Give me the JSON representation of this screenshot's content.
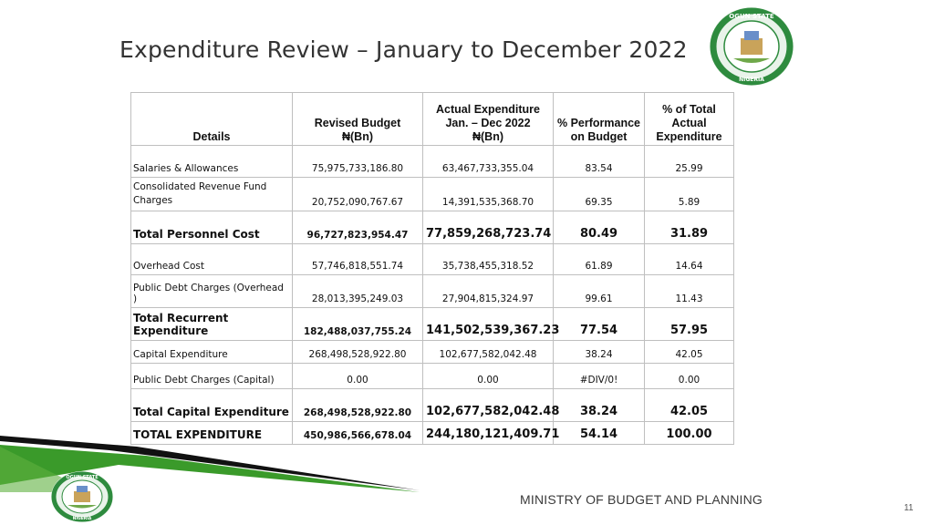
{
  "title": "Expenditure Review – January to December 2022",
  "table": {
    "headers": [
      [
        "Details"
      ],
      [
        "Revised  Budget",
        "₦(Bn)"
      ],
      [
        "Actual Expenditure",
        "Jan. – Dec 2022",
        "₦(Bn)"
      ],
      [
        "% Performance",
        "on     Budget"
      ],
      [
        "% of Total",
        "Actual",
        "Expenditure"
      ]
    ],
    "rows": [
      {
        "label": "Salaries & Allowances",
        "budget": "75,975,733,186.80",
        "actual": "63,467,733,355.04",
        "perf": "83.54",
        "share": "25.99"
      },
      {
        "label": "Consolidated Revenue Fund Charges",
        "budget": "20,752,090,767.67",
        "actual": "14,391,535,368.70",
        "perf": "69.35",
        "share": "5.89"
      },
      {
        "label": "Total Personnel Cost",
        "budget": "96,727,823,954.47",
        "actual": "77,859,268,723.74",
        "perf": "80.49",
        "share": "31.89"
      },
      {
        "label": "Overhead Cost",
        "budget": "57,746,818,551.74",
        "actual": "35,738,455,318.52",
        "perf": "61.89",
        "share": "14.64"
      },
      {
        "label": "Public Debt Charges (Overhead )",
        "budget": "28,013,395,249.03",
        "actual": "27,904,815,324.97",
        "perf": "99.61",
        "share": "11.43"
      },
      {
        "label": "Total Recurrent Expenditure",
        "budget": "182,488,037,755.24",
        "actual": "141,502,539,367.23",
        "perf": "77.54",
        "share": "57.95"
      },
      {
        "label": "Capital Expenditure",
        "budget": "268,498,528,922.80",
        "actual": "102,677,582,042.48",
        "perf": "38.24",
        "share": "42.05"
      },
      {
        "label": "Public Debt Charges (Capital)",
        "budget": "0.00",
        "actual": "0.00",
        "perf": "#DIV/0!",
        "share": "0.00"
      },
      {
        "label": "Total Capital Expenditure",
        "budget": "268,498,528,922.80",
        "actual": "102,677,582,042.48",
        "perf": "38.24",
        "share": "42.05"
      },
      {
        "label": "TOTAL EXPENDITURE",
        "budget": "450,986,566,678.04",
        "actual": "244,180,121,409.71",
        "perf": "54.14",
        "share": "100.00"
      }
    ]
  },
  "logo": {
    "top_text": "OGUN STATE",
    "bottom_text": "NIGERIA"
  },
  "footer": {
    "ministry": "MINISTRY OF BUDGET AND PLANNING",
    "page": "11"
  },
  "colors": {
    "title": "#333333",
    "logo_green": "#2e8b3e",
    "swoosh_green": "#3a9a2a",
    "swoosh_dark": "#111111"
  }
}
